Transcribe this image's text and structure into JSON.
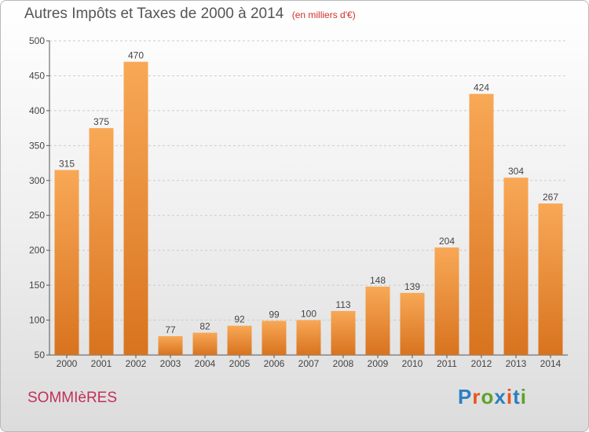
{
  "header": {
    "title": "Autres Impôts et Taxes de 2000 à 2014",
    "unit": "(en milliers d'€)"
  },
  "footer": {
    "city": "SOMMIèRES",
    "logo_text": "Proxiti",
    "logo_colors": [
      "#2a7fc1",
      "#e8541e",
      "#5aa32a",
      "#2a7fc1",
      "#e8541e",
      "#2a7fc1",
      "#5aa32a"
    ]
  },
  "colors": {
    "bar_top": "#f8a856",
    "bar_bottom": "#d8731f",
    "grid": "#cccccc",
    "axis": "#555555",
    "text": "#444444"
  },
  "chart_data": {
    "type": "bar",
    "title": "Autres Impôts et Taxes de 2000 à 2014",
    "subtitle": "(en milliers d'€)",
    "categories": [
      "2000",
      "2001",
      "2002",
      "2003",
      "2004",
      "2005",
      "2006",
      "2007",
      "2008",
      "2009",
      "2010",
      "2011",
      "2012",
      "2013",
      "2014"
    ],
    "values": [
      315,
      375,
      470,
      77,
      82,
      92,
      99,
      100,
      113,
      148,
      139,
      204,
      424,
      304,
      267
    ],
    "ylim": [
      50,
      500
    ],
    "yticks": [
      50,
      100,
      150,
      200,
      250,
      300,
      350,
      400,
      450,
      500
    ],
    "grid": true,
    "legend": "none"
  }
}
